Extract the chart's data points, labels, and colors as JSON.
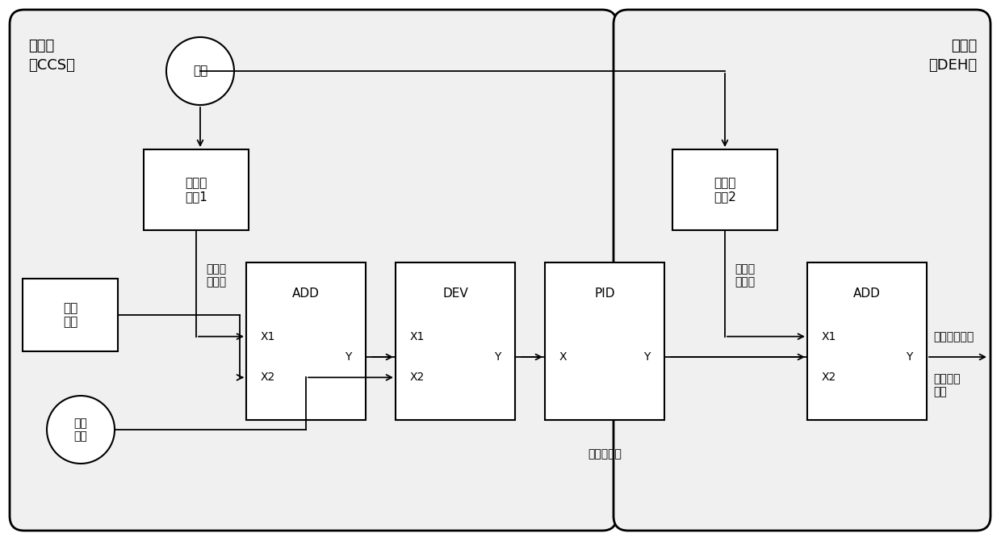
{
  "fig_width": 12.4,
  "fig_height": 6.81,
  "bg_color": "#ffffff",
  "box_facecolor": "#ffffff",
  "panel_facecolor": "#f0f0f0",
  "border_color": "#000000",
  "left_label_line1": "协调侧",
  "left_label_line2": "（CCS）",
  "right_label_line1": "调速侧",
  "right_label_line2": "（DEH）",
  "zhuancha_label": "转差",
  "budenglv1_label": "不等率\n函数1",
  "budenglv2_label": "不等率\n函数2",
  "gonglvdingzhi_label": "功率\n定值",
  "shijigonglv_label": "实际\n功率",
  "add1_title": "ADD",
  "add1_in1": "X1",
  "add1_in2": "X2",
  "add1_out": "Y",
  "dev_title": "DEV",
  "dev_in1": "X1",
  "dev_in2": "X2",
  "dev_out": "Y",
  "pid_title": "PID",
  "pid_in": "X",
  "pid_out": "Y",
  "add2_title": "ADD",
  "add2_in1": "X1",
  "add2_in2": "X2",
  "add2_out": "Y",
  "label_tiaopingonglv": "调频功\n率定值",
  "label_zonghefazl": "综合阀\n位增量",
  "label_zonghefazl_out": "综合阀位指令",
  "label_quchemen": "去汽轮机\n调门",
  "label_gonglvkz": "功率控制器"
}
